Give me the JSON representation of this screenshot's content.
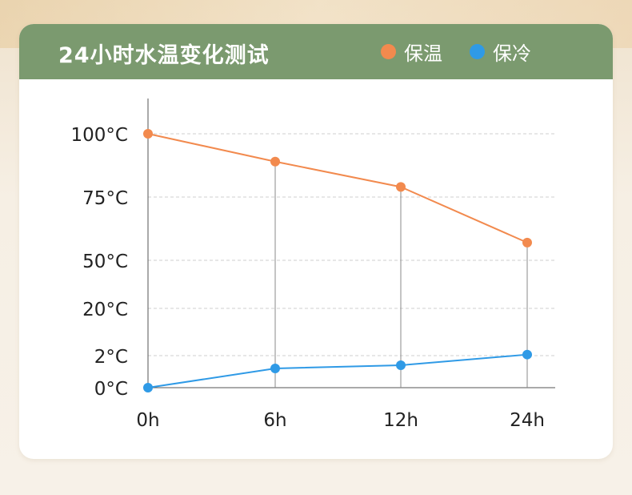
{
  "chart_data": {
    "type": "line",
    "title": "24小时水温变化测试",
    "categories": [
      "0h",
      "6h",
      "12h",
      "24h"
    ],
    "y_ticks": [
      "0°C",
      "2°C",
      "20°C",
      "50°C",
      "75°C",
      "100°C"
    ],
    "series": [
      {
        "name": "保温",
        "color": "#f28a4e",
        "values": [
          100,
          89,
          79,
          57
        ]
      },
      {
        "name": "保冷",
        "color": "#2f9ae6",
        "values": [
          0,
          1.2,
          1.4,
          2.4
        ]
      }
    ],
    "grid": true,
    "legend_position": "top-right"
  }
}
